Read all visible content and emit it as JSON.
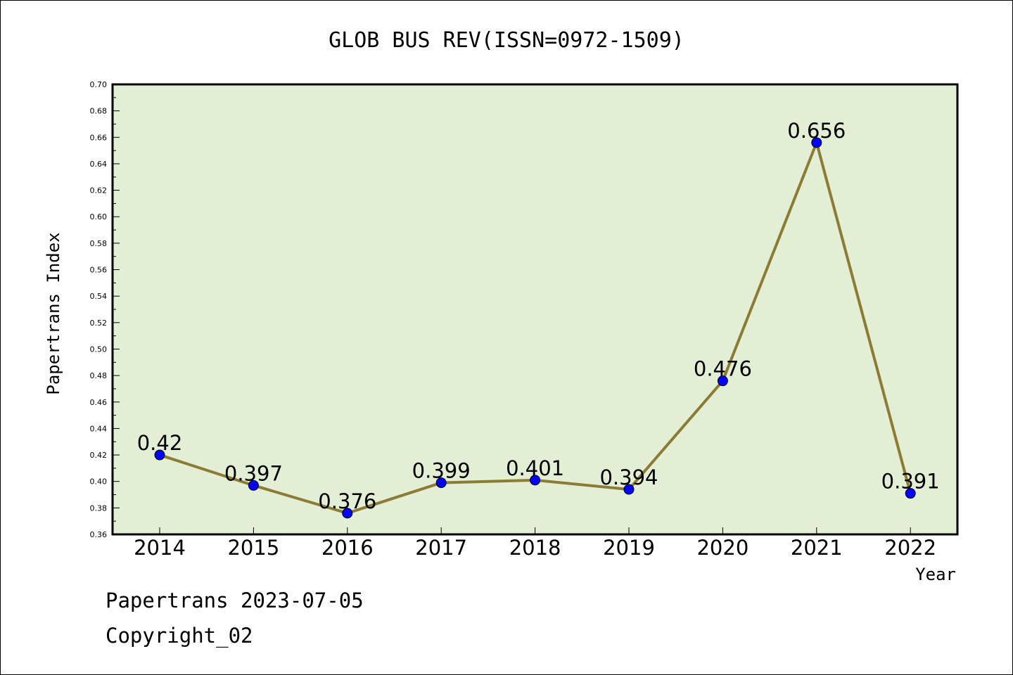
{
  "chart_data": {
    "type": "line",
    "title": "GLOB BUS REV(ISSN=0972-1509)",
    "xlabel": "Year",
    "ylabel": "Papertrans Index",
    "categories": [
      "2014",
      "2015",
      "2016",
      "2017",
      "2018",
      "2019",
      "2020",
      "2021",
      "2022"
    ],
    "series": [
      {
        "values": [
          0.42,
          0.397,
          0.376,
          0.399,
          0.401,
          0.394,
          0.476,
          0.656,
          0.391
        ],
        "labels": [
          "0.42",
          "0.397",
          "0.376",
          "0.399",
          "0.401",
          "0.394",
          "0.476",
          "0.656",
          "0.391"
        ]
      }
    ],
    "ylim": [
      0.36,
      0.7
    ],
    "ytick_labels": [
      "0.36",
      "0.38",
      "0.40",
      "0.42",
      "0.44",
      "0.46",
      "0.48",
      "0.50",
      "0.52",
      "0.54",
      "0.56",
      "0.58",
      "0.60",
      "0.62",
      "0.64",
      "0.66",
      "0.68",
      "0.70"
    ],
    "grid": false,
    "colors": {
      "plot_background": "#e2efd5",
      "line": "#8c7b35",
      "marker": "#0000ff"
    }
  },
  "footer": {
    "line1": "Papertrans 2023-07-05",
    "line2": "Copyright_02"
  }
}
